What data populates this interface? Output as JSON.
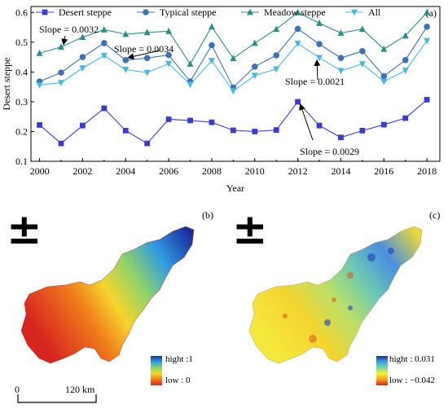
{
  "chart_data": {
    "type": "line",
    "panel_label": "(a)",
    "xlabel": "Year",
    "ylabel": "Desert steppe",
    "xlim": [
      1999.6,
      2018.6
    ],
    "ylim": [
      0.1,
      0.62
    ],
    "x_ticks": [
      "2000",
      "2002",
      "2004",
      "2006",
      "2008",
      "2010",
      "2012",
      "2014",
      "2016",
      "2018"
    ],
    "y_ticks": [
      "0.1",
      "0.2",
      "0.3",
      "0.4",
      "0.5",
      "0.6"
    ],
    "grid": false,
    "legend": "top",
    "x": [
      2000,
      2001,
      2002,
      2003,
      2004,
      2005,
      2006,
      2007,
      2008,
      2009,
      2010,
      2011,
      2012,
      2013,
      2014,
      2015,
      2016,
      2017,
      2018
    ],
    "series": [
      {
        "name": "Desert steppe",
        "color": "#3b3bd1",
        "marker": "square",
        "values": [
          0.222,
          0.16,
          0.22,
          0.278,
          0.203,
          0.16,
          0.241,
          0.237,
          0.231,
          0.204,
          0.2,
          0.205,
          0.3,
          0.22,
          0.18,
          0.203,
          0.223,
          0.245,
          0.307
        ]
      },
      {
        "name": "Typical steppe",
        "color": "#3e72b8",
        "marker": "circle",
        "values": [
          0.368,
          0.398,
          0.45,
          0.497,
          0.44,
          0.447,
          0.457,
          0.368,
          0.49,
          0.348,
          0.418,
          0.456,
          0.545,
          0.494,
          0.447,
          0.47,
          0.386,
          0.44,
          0.552
        ]
      },
      {
        "name": "Meadow steppe",
        "color": "#2e8f88",
        "marker": "triangle-up",
        "values": [
          0.463,
          0.484,
          0.517,
          0.542,
          0.527,
          0.533,
          0.537,
          0.427,
          0.552,
          0.446,
          0.497,
          0.544,
          0.6,
          0.564,
          0.531,
          0.544,
          0.477,
          0.522,
          0.6
        ]
      },
      {
        "name": "All",
        "color": "#49b7e6",
        "marker": "triangle-down",
        "values": [
          0.356,
          0.364,
          0.413,
          0.455,
          0.408,
          0.398,
          0.428,
          0.358,
          0.438,
          0.336,
          0.388,
          0.41,
          0.496,
          0.448,
          0.404,
          0.427,
          0.368,
          0.405,
          0.505
        ]
      }
    ],
    "annotations": [
      {
        "text": "Slope = 0.0032",
        "series": "Meadow steppe",
        "x": 2001
      },
      {
        "text": "Slope = 0.0034",
        "series": "Typical steppe",
        "x": 2004
      },
      {
        "text": "Slope = 0.0021",
        "series": "All",
        "x": 2013
      },
      {
        "text": "Slope = 0.0029",
        "series": "Desert steppe",
        "x": 2012
      }
    ]
  },
  "maps": {
    "panel_b": {
      "label": "(b)",
      "north_symbol": "±",
      "legend_high": "hight :1",
      "legend_low": "low : 0",
      "colormap": [
        "#d6241f",
        "#f6a21c",
        "#f5f230",
        "#43c9a8",
        "#1f77d6",
        "#1a2ea0"
      ]
    },
    "panel_c": {
      "label": "(c)",
      "north_symbol": "±",
      "legend_high": "hight : 0.031",
      "legend_low": "low : −0.042",
      "colormap": [
        "#d6241f",
        "#f6a21c",
        "#f5f230",
        "#7ad6a0",
        "#3ea3e6",
        "#1a2ea0"
      ]
    },
    "scalebar": {
      "start": "0",
      "end": "120 km"
    }
  }
}
